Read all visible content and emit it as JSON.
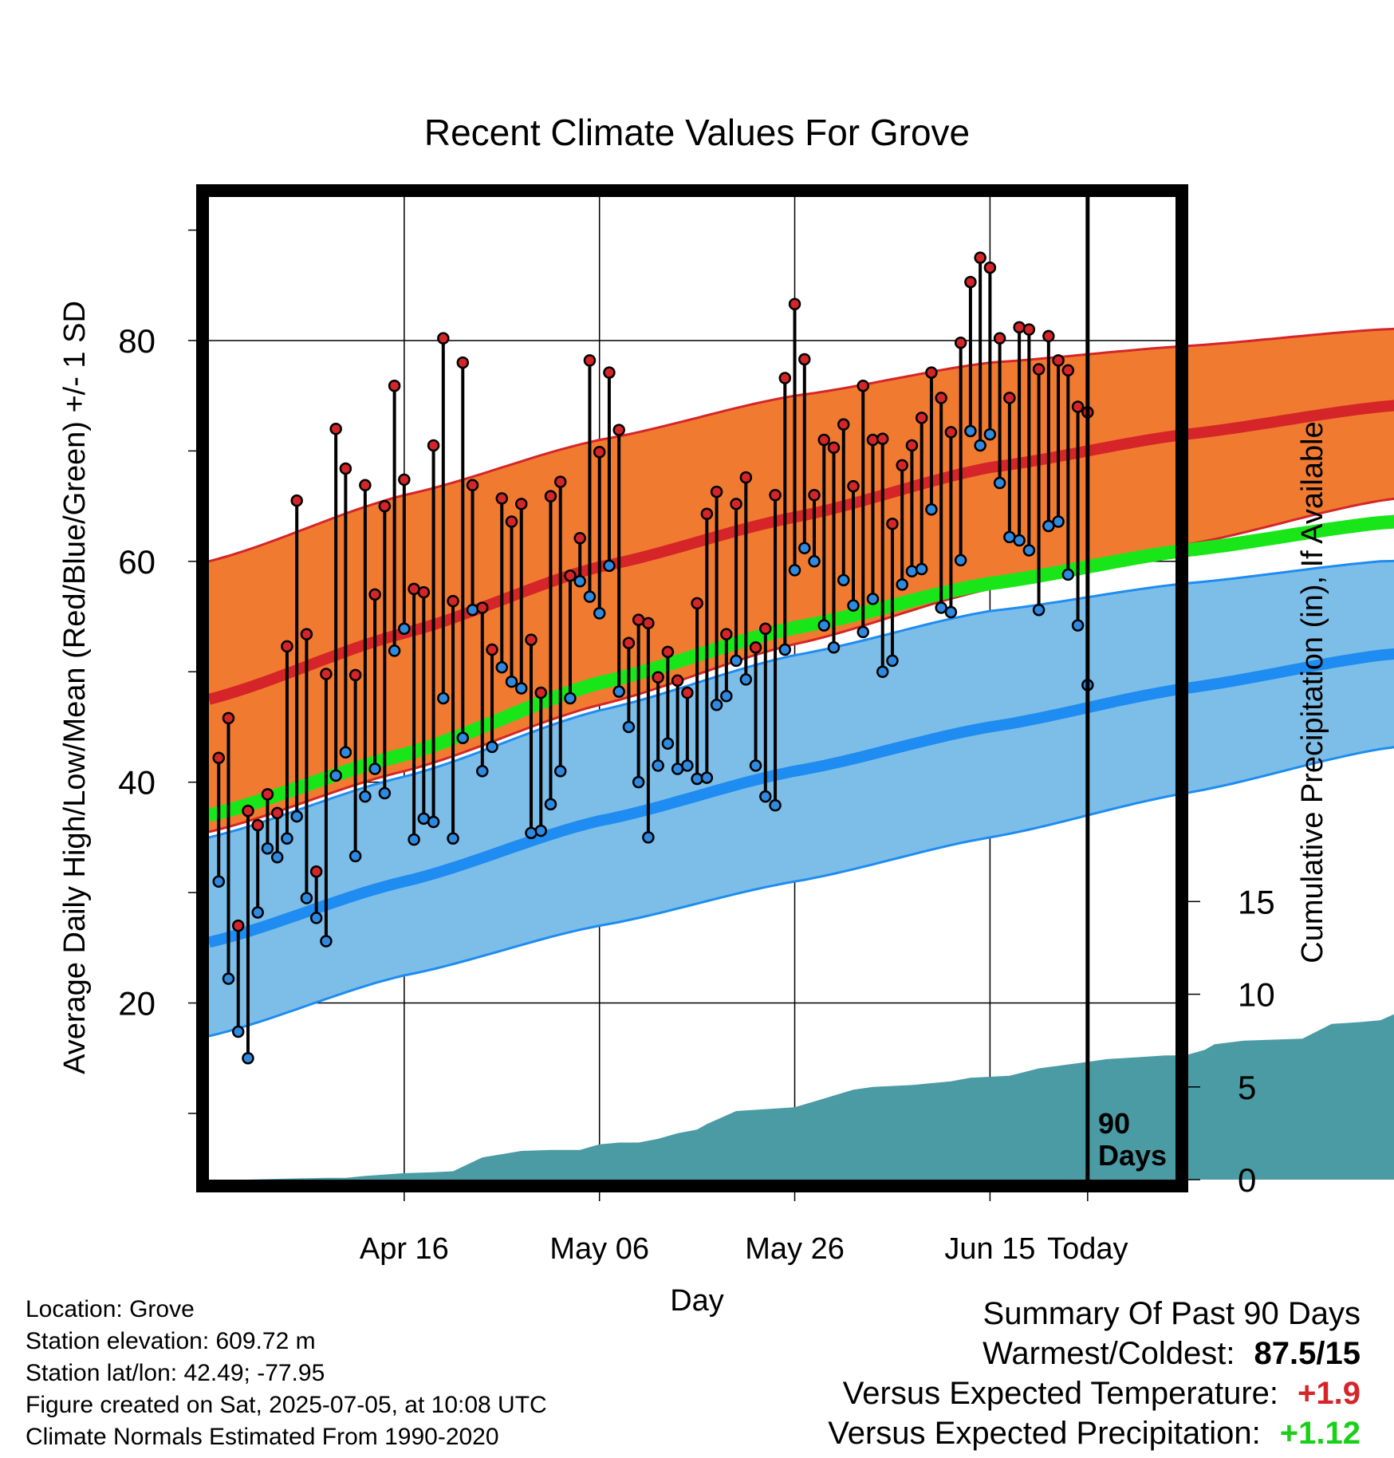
{
  "chart_data": {
    "type": "line",
    "title": "Recent Climate Values For Grove",
    "xlabel": "Day",
    "ylabel_left": "Average Daily High/Low/Mean (Red/Blue/Green) +/- 1 SD",
    "ylabel_right": "Cumulative Precipitation (in), If Available",
    "x_tick_labels": [
      "Apr 16",
      "May 06",
      "May 26",
      "Jun 15",
      "Today"
    ],
    "y_left_ticks": [
      20,
      40,
      60,
      80
    ],
    "y_left_range": [
      4,
      93
    ],
    "y_right_ticks": [
      0,
      5,
      10,
      15
    ],
    "y_right_range": [
      0,
      53
    ],
    "x_range_days": [
      -90,
      9
    ],
    "today_marker_label_line1": "90",
    "today_marker_label_line2": "Days",
    "colors": {
      "high_band": "#F07B30",
      "high_mean": "#D52528",
      "low_band": "#7DBEE8",
      "low_mean": "#1E8CF0",
      "mean_line": "#19E619",
      "precip": "#4A9BA4",
      "high_dot": "#D52528",
      "low_dot": "#2E8AE0"
    },
    "normals": {
      "x_days": [
        -90,
        -70,
        -50,
        -30,
        -10,
        10,
        30,
        50,
        70,
        90,
        99
      ],
      "high_mean": [
        47.5,
        53.5,
        59.5,
        64.0,
        68.5,
        71.5,
        74.0,
        76.0,
        77.0,
        77.5,
        77.5
      ],
      "high_upper": [
        60.0,
        66.0,
        71.0,
        75.0,
        78.0,
        79.5,
        81.0,
        82.0,
        83.0,
        83.5,
        83.5
      ],
      "high_lower": [
        35.5,
        41.0,
        47.0,
        52.5,
        57.5,
        61.5,
        65.5,
        68.5,
        70.5,
        71.5,
        71.5
      ],
      "mean": [
        37.0,
        42.5,
        49.0,
        54.0,
        58.0,
        61.0,
        63.5,
        65.0,
        66.0,
        66.5,
        66.5
      ],
      "low_mean": [
        25.5,
        31.0,
        36.5,
        41.0,
        45.0,
        48.5,
        51.5,
        53.5,
        54.5,
        55.0,
        55.0
      ],
      "low_upper": [
        35.0,
        40.5,
        46.5,
        51.5,
        55.5,
        58.0,
        60.0,
        60.5,
        61.0,
        61.0,
        61.0
      ],
      "low_lower": [
        17.0,
        22.5,
        27.0,
        31.0,
        35.0,
        39.0,
        43.0,
        46.0,
        47.5,
        48.5,
        48.5
      ]
    },
    "highs": [
      42.2,
      45.8,
      27.0,
      37.4,
      36.1,
      38.9,
      37.2,
      52.3,
      65.5,
      53.4,
      31.9,
      49.8,
      72.0,
      68.4,
      49.7,
      66.9,
      57.0,
      65.0,
      75.9,
      67.4,
      57.5,
      57.2,
      70.5,
      80.2,
      56.4,
      78.0,
      66.9,
      55.8,
      52.0,
      65.7,
      63.6,
      65.2,
      52.9,
      48.1,
      65.9,
      67.2,
      58.7,
      62.1,
      78.2,
      69.9,
      77.1,
      71.9,
      52.6,
      54.7,
      54.4,
      49.5,
      51.8,
      49.2,
      48.1,
      56.2,
      64.3,
      66.3,
      53.4,
      65.2,
      67.6,
      52.2,
      53.9,
      66.0,
      76.6,
      83.3,
      78.3,
      66.0,
      71.0,
      70.3,
      72.4,
      66.8,
      75.9,
      71.0,
      71.1,
      63.4,
      68.7,
      70.5,
      73.0,
      77.1,
      74.8,
      71.7,
      79.8,
      85.3,
      87.5,
      86.6,
      80.2,
      74.8,
      81.2,
      81.0,
      77.4,
      80.4,
      78.2,
      77.3,
      74.0,
      73.5
    ],
    "lows": [
      31.0,
      22.2,
      17.4,
      15.0,
      28.2,
      34.0,
      33.2,
      34.9,
      36.9,
      29.5,
      27.7,
      25.6,
      40.6,
      42.7,
      33.3,
      38.7,
      41.2,
      39.0,
      51.9,
      53.9,
      34.8,
      36.7,
      36.4,
      47.6,
      34.9,
      44.0,
      55.6,
      41.0,
      43.2,
      50.4,
      49.1,
      48.5,
      35.4,
      35.6,
      38.0,
      41.0,
      47.6,
      58.2,
      56.8,
      55.3,
      59.6,
      48.2,
      45.0,
      40.0,
      35.0,
      41.5,
      43.5,
      41.2,
      41.5,
      40.3,
      40.4,
      47.0,
      47.8,
      51.0,
      49.3,
      41.5,
      38.7,
      37.9,
      52.0,
      59.2,
      61.2,
      60.0,
      54.2,
      52.2,
      58.3,
      56.0,
      53.6,
      56.6,
      50.0,
      51.0,
      57.9,
      59.1,
      59.3,
      64.7,
      55.8,
      55.4,
      60.1,
      71.8,
      70.5,
      71.5,
      67.1,
      62.2,
      61.9,
      61.0,
      55.6,
      63.2,
      63.6,
      58.8,
      54.2,
      48.8
    ],
    "precip_cumulative": {
      "x_days": [
        -90,
        -86,
        -82,
        -78,
        -76,
        -74,
        -70,
        -67,
        -65,
        -62,
        -58,
        -55,
        -52,
        -50,
        -48,
        -46,
        -44,
        -42,
        -40,
        -39,
        -36,
        -30,
        -24,
        -22,
        -18,
        -14,
        -12,
        -8,
        -5,
        0,
        2,
        5,
        8,
        10,
        12,
        13,
        16,
        22,
        25,
        28,
        30,
        33,
        36,
        38,
        44,
        45,
        50,
        51,
        60,
        61,
        72,
        80,
        90,
        99
      ],
      "values": [
        0.0,
        0.0,
        0.05,
        0.1,
        0.1,
        0.2,
        0.35,
        0.4,
        0.45,
        1.2,
        1.55,
        1.6,
        1.6,
        1.9,
        2.0,
        2.0,
        2.2,
        2.5,
        2.7,
        3.0,
        3.7,
        3.9,
        4.85,
        5.0,
        5.1,
        5.3,
        5.5,
        5.6,
        6.0,
        6.35,
        6.5,
        6.6,
        6.7,
        6.7,
        7.0,
        7.3,
        7.5,
        7.6,
        8.4,
        8.5,
        8.6,
        9.3,
        9.6,
        10.5,
        10.5,
        11.3,
        11.3,
        12.3,
        12.3,
        12.5,
        12.55,
        12.6,
        12.7,
        12.7
      ]
    }
  },
  "info": {
    "location": "Location: Grove",
    "elevation": "Station elevation: 609.72 m",
    "latlon": "Station lat/lon: 42.49; -77.95",
    "created": "Figure created on Sat, 2025-07-05, at 10:08 UTC",
    "normals": "Climate Normals Estimated From 1990-2020"
  },
  "summary": {
    "heading": "Summary Of Past 90 Days",
    "warmest_label": "Warmest/Coldest:",
    "warmest_value": "87.5/15",
    "temp_label": "Versus Expected Temperature:",
    "temp_value": "+1.9",
    "temp_color": "#D52528",
    "precip_label": "Versus Expected Precipitation:",
    "precip_value": "+1.12",
    "precip_color": "#19D019"
  }
}
